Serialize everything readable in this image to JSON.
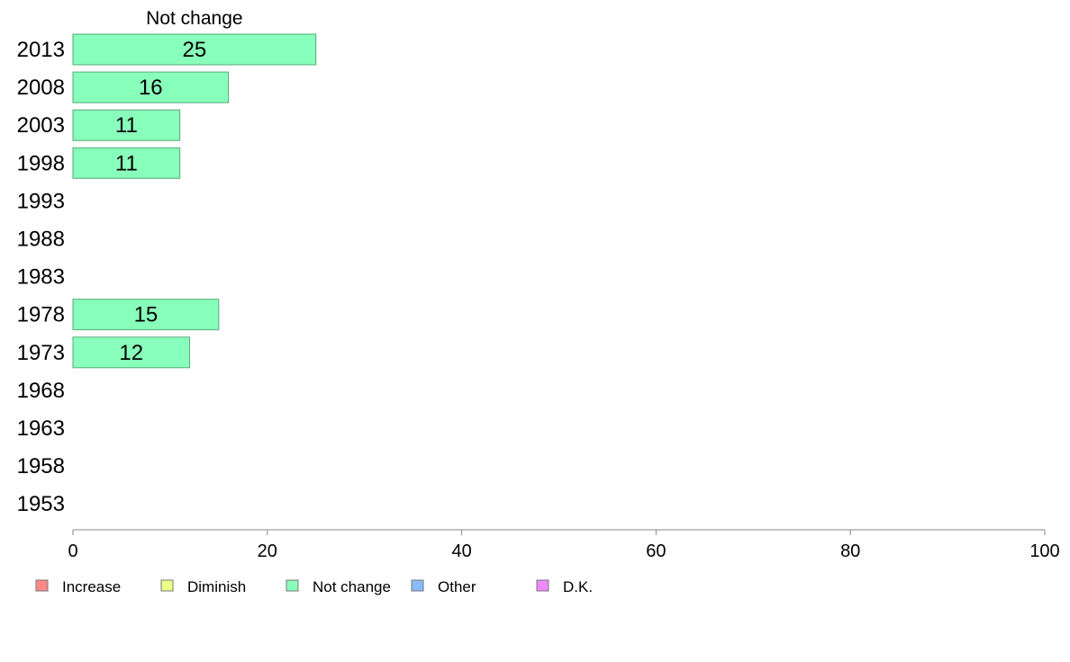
{
  "chart_data": {
    "type": "bar",
    "orientation": "horizontal",
    "title": "",
    "series_title": "Not change",
    "categories": [
      "2013",
      "2008",
      "2003",
      "1998",
      "1993",
      "1988",
      "1983",
      "1978",
      "1973",
      "1968",
      "1963",
      "1958",
      "1953"
    ],
    "series": [
      {
        "name": "Not change",
        "color": "#88ffbb",
        "values": [
          25,
          16,
          11,
          11,
          null,
          null,
          null,
          15,
          12,
          null,
          null,
          null,
          null
        ]
      }
    ],
    "value_labels": [
      "25",
      "16",
      "11",
      "11",
      "",
      "",
      "",
      "15",
      "12",
      "",
      "",
      "",
      ""
    ],
    "xlim": [
      0,
      100
    ],
    "xticks": [
      0,
      20,
      40,
      60,
      80,
      100
    ],
    "xtick_labels": [
      "0",
      "20",
      "40",
      "60",
      "80",
      "100"
    ],
    "grid": false,
    "legend": {
      "placement": "bottom-left",
      "items": [
        {
          "label": "Increase",
          "color": "#ff8888"
        },
        {
          "label": "Diminish",
          "color": "#eeff88"
        },
        {
          "label": "Not change",
          "color": "#88ffbb"
        },
        {
          "label": "Other",
          "color": "#88bbff"
        },
        {
          "label": "D.K.",
          "color": "#ee88ff"
        }
      ]
    }
  }
}
